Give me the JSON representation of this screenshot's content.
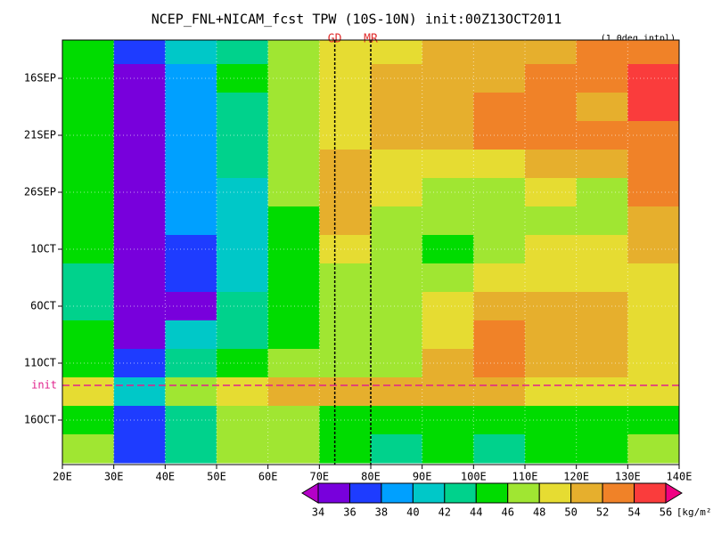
{
  "chart_data": {
    "type": "heatmap",
    "title": "NCEP_FNL+NICAM_fcst TPW (10S-10N) init:00Z13OCT2011",
    "subtitle": "(1.0deg intpl)",
    "x": [
      25,
      35,
      45,
      55,
      65,
      75,
      85,
      95,
      105,
      115,
      125,
      135
    ],
    "categories": [
      null,
      "16SEP",
      null,
      "21SEP",
      null,
      "26SEP",
      null,
      "1OCT",
      null,
      "6OCT",
      null,
      "11OCT",
      null,
      "16OCT",
      null
    ],
    "values": [
      [
        44,
        36,
        40,
        43,
        46,
        48,
        49,
        50,
        50,
        51,
        52,
        53
      ],
      [
        44,
        35,
        39,
        44,
        46,
        48,
        50,
        50,
        51,
        52,
        52,
        54
      ],
      [
        45,
        35,
        39,
        43,
        46,
        49,
        50,
        50,
        52,
        53,
        51,
        54
      ],
      [
        44,
        35,
        39,
        42,
        47,
        49,
        50,
        50,
        52,
        53,
        52,
        53
      ],
      [
        44,
        35,
        39,
        42,
        46,
        50,
        49,
        48,
        48,
        50,
        51,
        52
      ],
      [
        44,
        35,
        39,
        41,
        46,
        51,
        49,
        47,
        46,
        48,
        47,
        52
      ],
      [
        44,
        35,
        38,
        40,
        45,
        50,
        47,
        46,
        46,
        47,
        47,
        51
      ],
      [
        44,
        35,
        37,
        40,
        44,
        48,
        46,
        45,
        46,
        48,
        48,
        50
      ],
      [
        43,
        35,
        36,
        41,
        44,
        47,
        46,
        47,
        48,
        49,
        49,
        49
      ],
      [
        43,
        35,
        35,
        42,
        44,
        46,
        46,
        48,
        50,
        50,
        50,
        49
      ],
      [
        44,
        35,
        40,
        43,
        45,
        46,
        47,
        49,
        52,
        51,
        50,
        49
      ],
      [
        45,
        36,
        42,
        44,
        46,
        47,
        47,
        50,
        52,
        50,
        50,
        49
      ],
      [
        48,
        40,
        46,
        48,
        50,
        50,
        50,
        50,
        50,
        49,
        49,
        49
      ],
      [
        44,
        36,
        42,
        46,
        46,
        44,
        44,
        44,
        44,
        44,
        44,
        44
      ],
      [
        46,
        36,
        42,
        46,
        46,
        44,
        42,
        44,
        42,
        44,
        44,
        46
      ]
    ],
    "xlim": [
      20,
      140
    ],
    "xticks": [
      {
        "value": 20,
        "label": "20E"
      },
      {
        "value": 30,
        "label": "30E"
      },
      {
        "value": 40,
        "label": "40E"
      },
      {
        "value": 50,
        "label": "50E"
      },
      {
        "value": 60,
        "label": "60E"
      },
      {
        "value": 70,
        "label": "70E"
      },
      {
        "value": 80,
        "label": "80E"
      },
      {
        "value": 90,
        "label": "90E"
      },
      {
        "value": 100,
        "label": "100E"
      },
      {
        "value": 110,
        "label": "110E"
      },
      {
        "value": 120,
        "label": "120E"
      },
      {
        "value": 130,
        "label": "130E"
      },
      {
        "value": 140,
        "label": "140E"
      }
    ],
    "grid": true,
    "init_label": "init",
    "init_row": 12,
    "markers": [
      {
        "label": "GD",
        "x": 73
      },
      {
        "label": "MR",
        "x": 80
      }
    ],
    "colorbar": {
      "levels": [
        34,
        36,
        38,
        40,
        42,
        44,
        46,
        48,
        50,
        52,
        54,
        56
      ],
      "colors": [
        "#b400c8",
        "#7800dc",
        "#1e3cff",
        "#00a0ff",
        "#00c8c8",
        "#00d28c",
        "#00dc00",
        "#a0e632",
        "#e6dc32",
        "#e6af2d",
        "#f08228",
        "#fa3c3c",
        "#f00082"
      ],
      "unit": "[kg/m²]"
    }
  }
}
